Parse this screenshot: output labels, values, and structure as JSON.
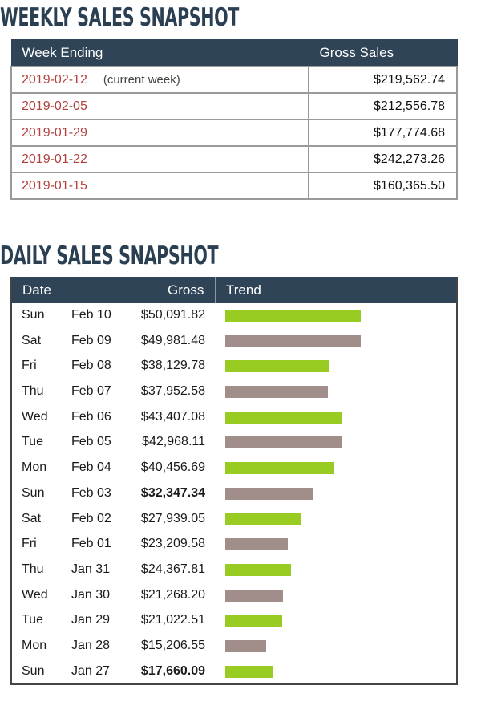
{
  "weekly": {
    "title": "WEEKLY SALES SNAPSHOT",
    "headers": {
      "week_ending": "Week Ending",
      "gross_sales": "Gross Sales"
    },
    "rows": [
      {
        "date": "2019-02-12",
        "note": "(current week)",
        "gross": "$219,562.74"
      },
      {
        "date": "2019-02-05",
        "note": "",
        "gross": "$212,556.78"
      },
      {
        "date": "2019-01-29",
        "note": "",
        "gross": "$177,774.68"
      },
      {
        "date": "2019-01-22",
        "note": "",
        "gross": "$242,273.26"
      },
      {
        "date": "2019-01-15",
        "note": "",
        "gross": "$160,365.50"
      }
    ]
  },
  "daily": {
    "title": "DAILY SALES SNAPSHOT",
    "headers": {
      "date": "Date",
      "gross": "Gross",
      "trend": "Trend"
    },
    "colors": {
      "up": "#99cc22",
      "down": "#a18e8b"
    },
    "max_gross": 50091.82,
    "rows": [
      {
        "dow": "Sun",
        "date": "Feb 10",
        "gross": "$50,091.82",
        "value": 50091.82,
        "bold": false,
        "trend": "up"
      },
      {
        "dow": "Sat",
        "date": "Feb 09",
        "gross": "$49,981.48",
        "value": 49981.48,
        "bold": false,
        "trend": "down"
      },
      {
        "dow": "Fri",
        "date": "Feb 08",
        "gross": "$38,129.78",
        "value": 38129.78,
        "bold": false,
        "trend": "up"
      },
      {
        "dow": "Thu",
        "date": "Feb 07",
        "gross": "$37,952.58",
        "value": 37952.58,
        "bold": false,
        "trend": "down"
      },
      {
        "dow": "Wed",
        "date": "Feb 06",
        "gross": "$43,407.08",
        "value": 43407.08,
        "bold": false,
        "trend": "up"
      },
      {
        "dow": "Tue",
        "date": "Feb 05",
        "gross": "$42,968.11",
        "value": 42968.11,
        "bold": false,
        "trend": "down"
      },
      {
        "dow": "Mon",
        "date": "Feb 04",
        "gross": "$40,456.69",
        "value": 40456.69,
        "bold": false,
        "trend": "up"
      },
      {
        "dow": "Sun",
        "date": "Feb 03",
        "gross": "$32,347.34",
        "value": 32347.34,
        "bold": true,
        "trend": "down"
      },
      {
        "dow": "Sat",
        "date": "Feb 02",
        "gross": "$27,939.05",
        "value": 27939.05,
        "bold": false,
        "trend": "up"
      },
      {
        "dow": "Fri",
        "date": "Feb 01",
        "gross": "$23,209.58",
        "value": 23209.58,
        "bold": false,
        "trend": "down"
      },
      {
        "dow": "Thu",
        "date": "Jan 31",
        "gross": "$24,367.81",
        "value": 24367.81,
        "bold": false,
        "trend": "up"
      },
      {
        "dow": "Wed",
        "date": "Jan 30",
        "gross": "$21,268.20",
        "value": 21268.2,
        "bold": false,
        "trend": "down"
      },
      {
        "dow": "Tue",
        "date": "Jan 29",
        "gross": "$21,022.51",
        "value": 21022.51,
        "bold": false,
        "trend": "up"
      },
      {
        "dow": "Mon",
        "date": "Jan 28",
        "gross": "$15,206.55",
        "value": 15206.55,
        "bold": false,
        "trend": "down"
      },
      {
        "dow": "Sun",
        "date": "Jan 27",
        "gross": "$17,660.09",
        "value": 17660.09,
        "bold": true,
        "trend": "up"
      }
    ]
  }
}
